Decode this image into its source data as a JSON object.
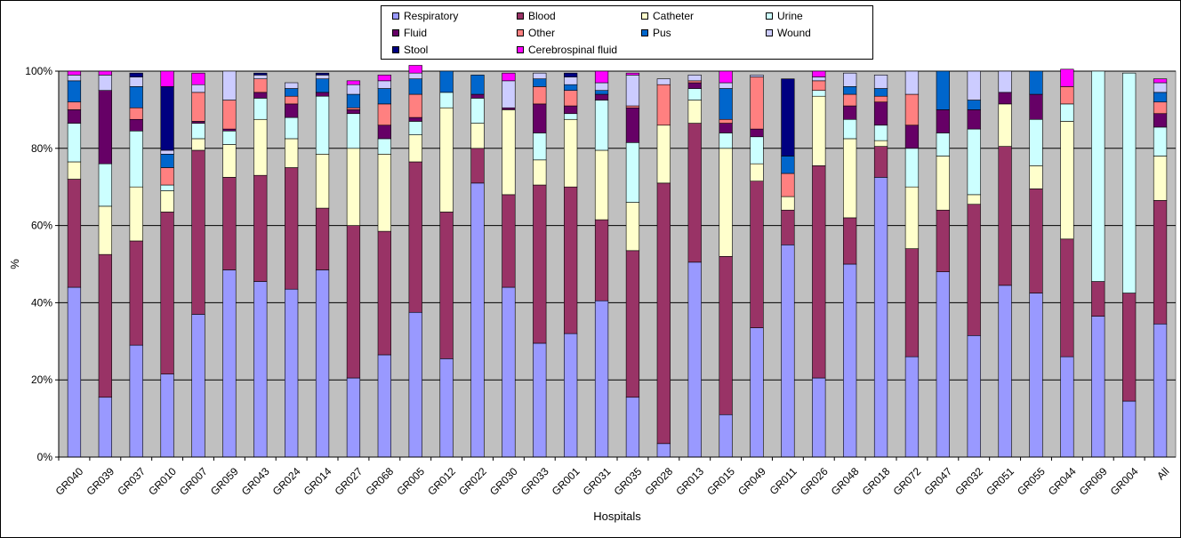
{
  "chart_data": {
    "type": "bar",
    "stacked": true,
    "percent": true,
    "xlabel": "Hospitals",
    "ylabel": "%",
    "ylim": [
      0,
      100
    ],
    "yticks": [
      "0%",
      "20%",
      "40%",
      "60%",
      "80%",
      "100%"
    ],
    "grid": true,
    "legend_position": "top",
    "plot_background": "#c0c0c0",
    "categories": [
      "GR040",
      "GR039",
      "GR037",
      "GR010",
      "GR007",
      "GR059",
      "GR043",
      "GR024",
      "GR014",
      "GR027",
      "GR068",
      "GR005",
      "GR012",
      "GR022",
      "GR030",
      "GR033",
      "GR001",
      "GR031",
      "GR035",
      "GR028",
      "GR013",
      "GR015",
      "GR049",
      "GR011",
      "GR026",
      "GR048",
      "GR018",
      "GR072",
      "GR047",
      "GR032",
      "GR051",
      "GR055",
      "GR044",
      "GR069",
      "GR004",
      "All"
    ],
    "series": [
      {
        "name": "Respiratory",
        "color": "#9999ff",
        "values": [
          44,
          15.5,
          29,
          21.5,
          37,
          48.5,
          45.5,
          43.5,
          48.5,
          20.5,
          26.5,
          37.5,
          25.5,
          71,
          44,
          29.5,
          32,
          40.5,
          15.5,
          3.5,
          50.5,
          11,
          33.5,
          55,
          20.5,
          50,
          72.5,
          26,
          48,
          31.5,
          44.5,
          42.5,
          26,
          36.5,
          14.5,
          34.5
        ]
      },
      {
        "name": "Blood",
        "color": "#993366",
        "values": [
          28,
          37,
          27,
          42,
          42.5,
          24,
          27.5,
          31.5,
          16,
          39.5,
          32,
          39,
          38,
          9,
          24,
          41,
          38,
          21,
          38,
          67.5,
          36,
          41,
          38,
          9,
          55,
          12,
          8,
          28,
          16,
          34,
          36,
          27,
          30.5,
          9,
          28,
          32
        ]
      },
      {
        "name": "Catheter",
        "color": "#ffffcc",
        "values": [
          4.5,
          12.5,
          14,
          5.5,
          3,
          8.5,
          14.5,
          7.5,
          14,
          20,
          20,
          7,
          27,
          6.5,
          22,
          6.5,
          17.5,
          18,
          12.5,
          15,
          6,
          28,
          4.5,
          3.5,
          18,
          20.5,
          1.5,
          16,
          14,
          2.5,
          11,
          6,
          30.5,
          0,
          0,
          11.5
        ]
      },
      {
        "name": "Urine",
        "color": "#ccffff",
        "values": [
          10,
          11,
          14.5,
          1.5,
          4,
          3.5,
          5.5,
          5.5,
          15,
          9,
          4,
          3.5,
          4,
          6.5,
          0,
          7,
          1.5,
          13,
          15.5,
          0,
          3,
          4,
          7,
          0,
          1.5,
          5,
          4,
          10,
          6,
          17,
          0,
          12,
          4.5,
          54.5,
          57,
          7.5
        ]
      },
      {
        "name": "Fluid",
        "color": "#660066",
        "values": [
          3.5,
          19,
          3,
          0,
          0.5,
          0.5,
          1.5,
          3.5,
          1,
          1,
          3.5,
          1,
          0,
          1,
          0.5,
          7.5,
          2,
          1.5,
          9,
          0,
          1.5,
          2.5,
          2,
          0,
          0,
          3.5,
          6,
          6,
          6,
          5,
          3,
          6.5,
          0,
          0,
          0,
          3.5
        ]
      },
      {
        "name": "Other",
        "color": "#ff8080",
        "values": [
          2,
          0,
          3,
          4.5,
          7.5,
          7.5,
          3.5,
          2,
          0,
          0.5,
          5.5,
          6,
          0,
          0,
          0,
          4.5,
          4,
          0,
          0.5,
          10.5,
          0.5,
          1,
          13.5,
          6,
          2.5,
          3,
          1.5,
          8,
          0,
          0,
          0,
          0,
          4.5,
          0,
          0,
          3
        ]
      },
      {
        "name": "Pus",
        "color": "#0066cc",
        "values": [
          5.5,
          0,
          5.5,
          3.5,
          0,
          0,
          0,
          2,
          3.5,
          3.5,
          4,
          4,
          5.5,
          5,
          0,
          2,
          1.5,
          1,
          0,
          0,
          0,
          8,
          0,
          4.5,
          0,
          2,
          2,
          0,
          10,
          2.5,
          0,
          6,
          0,
          0,
          0,
          2.5
        ]
      },
      {
        "name": "Wound",
        "color": "#ccccff",
        "values": [
          1.5,
          4,
          2.5,
          1,
          2,
          7.5,
          1,
          1.5,
          1,
          2.5,
          2,
          1.5,
          0,
          0,
          7,
          1.5,
          2,
          2,
          8,
          1.5,
          1.5,
          1.5,
          0.5,
          0,
          1,
          3.5,
          3.5,
          6,
          0,
          7.5,
          5.5,
          0,
          0,
          0,
          0,
          2.5
        ]
      },
      {
        "name": "Stool",
        "color": "#000080",
        "values": [
          0,
          0,
          1,
          16.5,
          0,
          0,
          0.5,
          0,
          0.5,
          0,
          0,
          0,
          0,
          0,
          0,
          0,
          1,
          0,
          0,
          0,
          0,
          0,
          0,
          20,
          0,
          0,
          0,
          0,
          0,
          0,
          0,
          0,
          0,
          0,
          0,
          0
        ]
      },
      {
        "name": "Cerebrospinal fluid",
        "color": "#ff00ff",
        "values": [
          1,
          1,
          0,
          4,
          3,
          0,
          0,
          0,
          0,
          1,
          1.5,
          2,
          0,
          0,
          2,
          0,
          0,
          3,
          0.5,
          0,
          0,
          3,
          0,
          0,
          1.5,
          0,
          0,
          0,
          0,
          0,
          0,
          0,
          4.5,
          0,
          0,
          1
        ]
      }
    ]
  }
}
